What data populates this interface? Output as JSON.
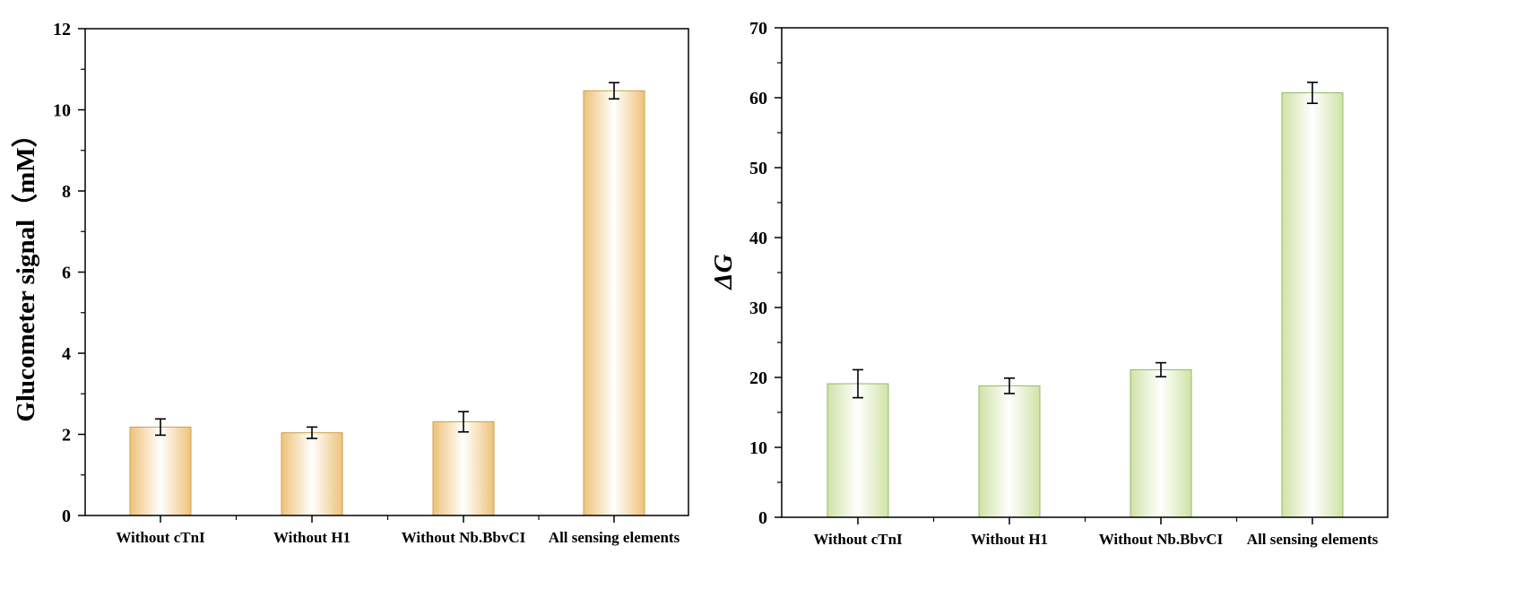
{
  "chart_data": [
    {
      "type": "bar",
      "categories": [
        "Without cTnI",
        "Without H1",
        "Without Nb.BbvCI",
        "All sensing elements"
      ],
      "values": [
        2.18,
        2.04,
        2.31,
        10.47
      ],
      "errors": [
        0.2,
        0.14,
        0.25,
        0.2
      ],
      "title": "",
      "xlabel": "",
      "ylabel": "Glucometer signal（mM）",
      "ylim": [
        0,
        12
      ],
      "yticks": [
        "0",
        "2",
        "4",
        "6",
        "8",
        "10",
        "12"
      ],
      "grid": false,
      "bar_fill": "gradient",
      "colors": {
        "edge": "#c9a24a",
        "light": "#ffffff",
        "dark": "#eec27a"
      }
    },
    {
      "type": "bar",
      "categories": [
        "Without cTnI",
        "Without H1",
        "Without Nb.BbvCI",
        "All sensing elements"
      ],
      "values": [
        19.1,
        18.8,
        21.1,
        60.7
      ],
      "errors": [
        2.0,
        1.1,
        1.0,
        1.5
      ],
      "title": "",
      "xlabel": "",
      "ylabel": "ΔG",
      "ylim": [
        0,
        70
      ],
      "yticks": [
        "0",
        "10",
        "20",
        "30",
        "40",
        "50",
        "60",
        "70"
      ],
      "grid": false,
      "bar_fill": "gradient",
      "colors": {
        "edge": "#93b866",
        "light": "#ffffff",
        "dark": "#cfe3a6"
      }
    }
  ]
}
